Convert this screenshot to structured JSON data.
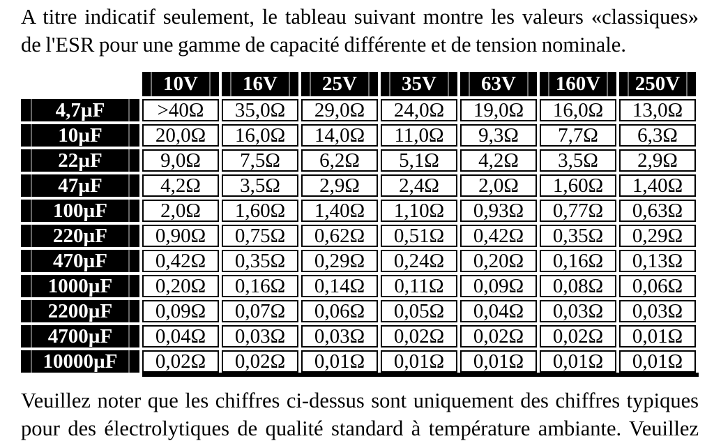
{
  "page": {
    "background": "#ffffff",
    "text_color": "#000000"
  },
  "intro": {
    "lines": [
      "A titre indicatif seulement, le tableau suivant montre les valeurs «classiques»",
      "de l'ESR pour une gamme de capacité différente et de tension nominale."
    ]
  },
  "footer": {
    "lines": [
      "Veuillez noter que les chiffres ci-dessus sont uniquement des chiffres typiques",
      "pour des électrolytiques de qualité standard à température ambiante. Veuillez"
    ]
  },
  "table": {
    "corner_label": "",
    "columns": [
      "10V",
      "16V",
      "25V",
      "35V",
      "63V",
      "160V",
      "250V"
    ],
    "rows": [
      {
        "label": "4,7µF",
        "values": [
          ">40Ω",
          "35,0Ω",
          "29,0Ω",
          "24,0Ω",
          "19,0Ω",
          "16,0Ω",
          "13,0Ω"
        ]
      },
      {
        "label": "10µF",
        "values": [
          "20,0Ω",
          "16,0Ω",
          "14,0Ω",
          "11,0Ω",
          "9,3Ω",
          "7,7Ω",
          "6,3Ω"
        ]
      },
      {
        "label": "22µF",
        "values": [
          "9,0Ω",
          "7,5Ω",
          "6,2Ω",
          "5,1Ω",
          "4,2Ω",
          "3,5Ω",
          "2,9Ω"
        ]
      },
      {
        "label": "47µF",
        "values": [
          "4,2Ω",
          "3,5Ω",
          "2,9Ω",
          "2,4Ω",
          "2,0Ω",
          "1,60Ω",
          "1,40Ω"
        ]
      },
      {
        "label": "100µF",
        "values": [
          "2,0Ω",
          "1,60Ω",
          "1,40Ω",
          "1,10Ω",
          "0,93Ω",
          "0,77Ω",
          "0,63Ω"
        ]
      },
      {
        "label": "220µF",
        "values": [
          "0,90Ω",
          "0,75Ω",
          "0,62Ω",
          "0,51Ω",
          "0,42Ω",
          "0,35Ω",
          "0,29Ω"
        ]
      },
      {
        "label": "470µF",
        "values": [
          "0,42Ω",
          "0,35Ω",
          "0,29Ω",
          "0,24Ω",
          "0,20Ω",
          "0,16Ω",
          "0,13Ω"
        ]
      },
      {
        "label": "1000µF",
        "values": [
          "0,20Ω",
          "0,16Ω",
          "0,14Ω",
          "0,11Ω",
          "0,09Ω",
          "0,08Ω",
          "0,06Ω"
        ]
      },
      {
        "label": "2200µF",
        "values": [
          "0,09Ω",
          "0,07Ω",
          "0,06Ω",
          "0,05Ω",
          "0,04Ω",
          "0,03Ω",
          "0,03Ω"
        ]
      },
      {
        "label": "4700µF",
        "values": [
          "0,04Ω",
          "0,03Ω",
          "0,03Ω",
          "0,02Ω",
          "0,02Ω",
          "0,02Ω",
          "0,01Ω"
        ]
      },
      {
        "label": "10000µF",
        "values": [
          "0,02Ω",
          "0,02Ω",
          "0,01Ω",
          "0,01Ω",
          "0,01Ω",
          "0,01Ω",
          "0,01Ω"
        ]
      }
    ],
    "colors": {
      "header_bg": "#000000",
      "header_text": "#ffffff",
      "cell_bg": "#ffffff",
      "border": "#000000"
    }
  }
}
